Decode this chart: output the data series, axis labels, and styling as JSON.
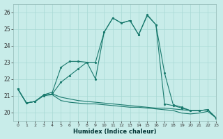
{
  "xlabel": "Humidex (Indice chaleur)",
  "background_color": "#c8ece9",
  "grid_color": "#a8d8d4",
  "line_color": "#1a7a6e",
  "xlim": [
    -0.5,
    23
  ],
  "ylim": [
    19.5,
    26.5
  ],
  "yticks": [
    20,
    21,
    22,
    23,
    24,
    25,
    26
  ],
  "xticks": [
    0,
    1,
    2,
    3,
    4,
    5,
    6,
    7,
    8,
    9,
    10,
    11,
    12,
    13,
    14,
    15,
    16,
    17,
    18,
    19,
    20,
    21,
    22,
    23
  ],
  "series": [
    {
      "x": [
        0,
        1,
        2,
        3,
        4,
        5,
        6,
        7,
        8,
        9,
        10,
        11,
        12,
        13,
        14,
        15,
        16,
        17,
        18,
        19,
        20,
        21,
        22,
        23
      ],
      "y": [
        21.4,
        20.55,
        20.65,
        21.0,
        21.05,
        20.7,
        20.6,
        20.55,
        20.5,
        20.5,
        20.45,
        20.4,
        20.35,
        20.3,
        20.3,
        20.25,
        20.2,
        20.15,
        20.1,
        19.95,
        19.9,
        19.95,
        20.05,
        19.65
      ],
      "marker": false,
      "linestyle": "-"
    },
    {
      "x": [
        0,
        1,
        2,
        3,
        4,
        5,
        6,
        7,
        8,
        9,
        10,
        11,
        12,
        13,
        14,
        15,
        16,
        17,
        18,
        19,
        20,
        21,
        22,
        23
      ],
      "y": [
        21.4,
        20.55,
        20.65,
        21.0,
        21.1,
        20.9,
        20.8,
        20.7,
        20.65,
        20.6,
        20.55,
        20.5,
        20.45,
        20.4,
        20.35,
        20.3,
        20.25,
        20.25,
        20.2,
        20.15,
        20.1,
        20.1,
        20.15,
        19.65
      ],
      "marker": false,
      "linestyle": "-"
    },
    {
      "x": [
        0,
        1,
        2,
        3,
        4,
        5,
        6,
        7,
        8,
        9,
        10,
        11,
        12,
        13,
        14,
        15,
        16,
        17,
        18,
        19,
        20,
        21,
        22,
        23
      ],
      "y": [
        21.4,
        20.55,
        20.65,
        21.0,
        21.1,
        21.8,
        22.2,
        22.6,
        23.0,
        23.0,
        24.8,
        25.65,
        25.35,
        25.5,
        24.65,
        25.8,
        25.25,
        22.35,
        20.45,
        20.3,
        20.1,
        20.1,
        20.15,
        19.65
      ],
      "marker": true,
      "linestyle": "-"
    },
    {
      "x": [
        0,
        1,
        2,
        3,
        4,
        5,
        6,
        7,
        8,
        9,
        10,
        11,
        12,
        13,
        14,
        15,
        16,
        17,
        18,
        19,
        20,
        21,
        22,
        23
      ],
      "y": [
        21.4,
        20.55,
        20.65,
        21.05,
        21.2,
        22.7,
        23.05,
        23.05,
        23.0,
        22.0,
        24.8,
        25.65,
        25.35,
        25.5,
        24.65,
        25.85,
        25.25,
        20.5,
        20.4,
        20.25,
        20.1,
        20.1,
        20.15,
        19.65
      ],
      "marker": true,
      "linestyle": "-"
    }
  ]
}
